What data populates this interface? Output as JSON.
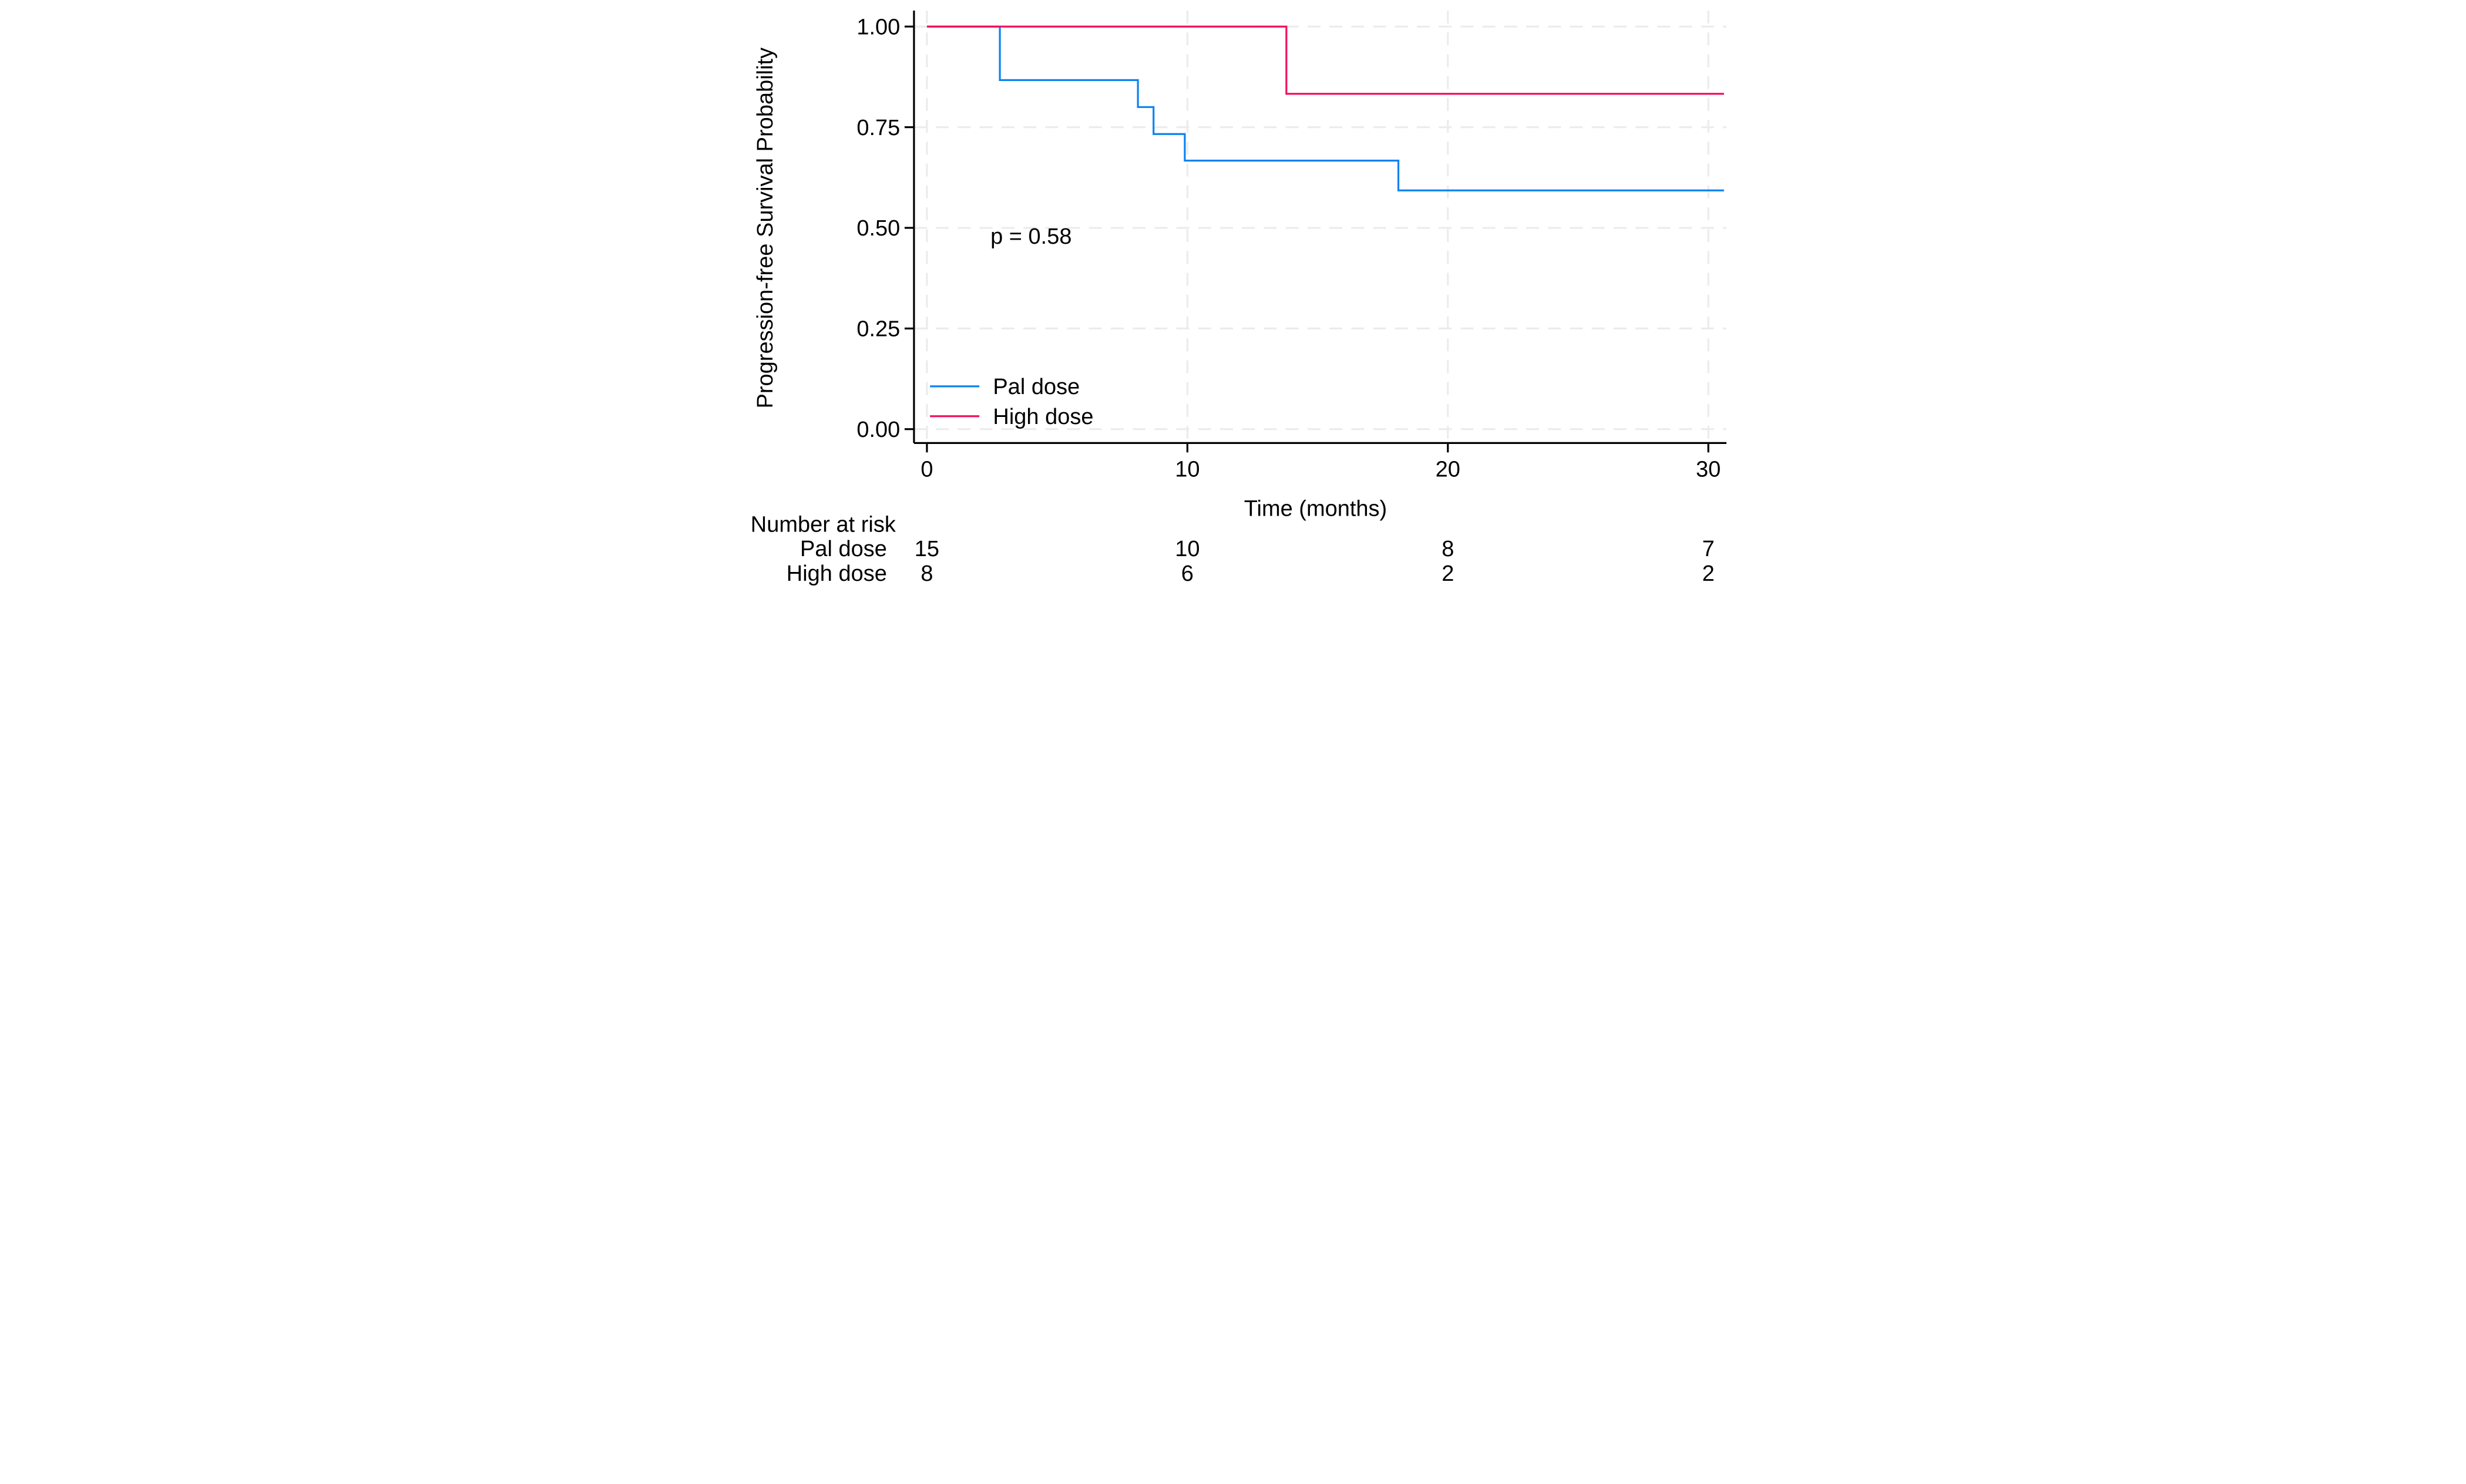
{
  "figure": {
    "background_color": "#ffffff",
    "axis_color": "#000000",
    "grid_color": "#ececec",
    "p_value_annotation": "p = 0.58"
  },
  "chart_data": {
    "type": "line",
    "subtype": "kaplan-meier-step",
    "title": "",
    "xlabel": "Time (months)",
    "ylabel": "Progression-free Survival Probability",
    "xlim": [
      0,
      30.6
    ],
    "ylim": [
      0,
      1
    ],
    "grid": true,
    "grid_style": "dashed",
    "legend_position": "inside-bottom-left",
    "x_ticks": [
      {
        "value": 0,
        "label": "0"
      },
      {
        "value": 10,
        "label": "10"
      },
      {
        "value": 20,
        "label": "20"
      },
      {
        "value": 30,
        "label": "30"
      }
    ],
    "y_ticks": [
      {
        "value": 0.0,
        "label": "0.00"
      },
      {
        "value": 0.25,
        "label": "0.25"
      },
      {
        "value": 0.5,
        "label": "0.50"
      },
      {
        "value": 0.75,
        "label": "0.75"
      },
      {
        "value": 1.0,
        "label": "1.00"
      }
    ],
    "annotations": [
      {
        "text": "p = 0.58",
        "x": 4.0,
        "y": 0.48
      }
    ],
    "series": [
      {
        "name": "Pal dose",
        "color": "#0b83f1",
        "points": [
          [
            0,
            1.0
          ],
          [
            2.8,
            1.0
          ],
          [
            2.8,
            0.867
          ],
          [
            8.1,
            0.867
          ],
          [
            8.1,
            0.8
          ],
          [
            8.7,
            0.8
          ],
          [
            8.7,
            0.733
          ],
          [
            9.9,
            0.733
          ],
          [
            9.9,
            0.667
          ],
          [
            18.1,
            0.667
          ],
          [
            18.1,
            0.593
          ],
          [
            30.6,
            0.593
          ]
        ]
      },
      {
        "name": "High dose",
        "color": "#f1105e",
        "points": [
          [
            0,
            1.0
          ],
          [
            13.8,
            1.0
          ],
          [
            13.8,
            0.833
          ],
          [
            30.6,
            0.833
          ]
        ]
      }
    ]
  },
  "legend": {
    "items": [
      {
        "label": "Pal dose",
        "color": "#0b83f1"
      },
      {
        "label": "High dose",
        "color": "#f1105e"
      }
    ]
  },
  "risk_table": {
    "header": "Number at risk",
    "times": [
      0,
      10,
      20,
      30
    ],
    "rows": [
      {
        "label": "Pal dose",
        "counts": [
          "15",
          "10",
          "8",
          "7"
        ]
      },
      {
        "label": "High dose",
        "counts": [
          "8",
          "6",
          "2",
          "2"
        ]
      }
    ]
  }
}
